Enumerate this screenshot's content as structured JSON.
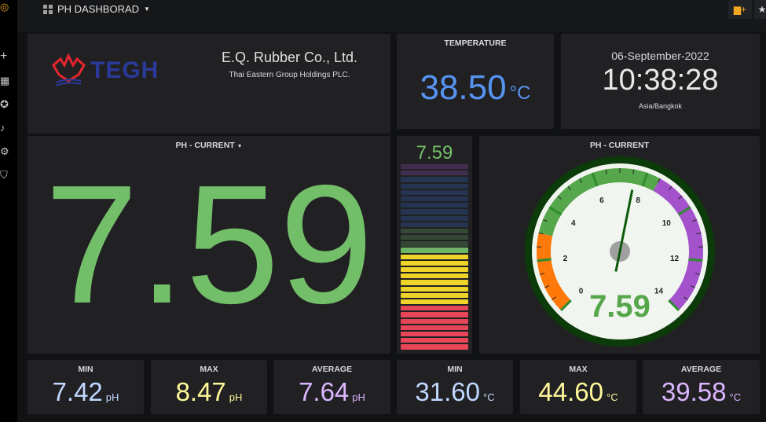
{
  "topbar": {
    "dashboard_title": "PH DASHBORAD",
    "add_panel_icon": "bar-chart-plus-icon",
    "star_icon": "star-icon"
  },
  "sidebar": {
    "icons": [
      "grafana-logo-icon",
      "plus-icon",
      "dashboards-icon",
      "explore-icon",
      "bell-icon",
      "gear-icon",
      "shield-icon"
    ]
  },
  "logo": {
    "text": "TEGH"
  },
  "company": {
    "name": "E.Q. Rubber Co., Ltd.",
    "subtitle": "Thai Eastern Group Holdings PLC."
  },
  "temperature": {
    "title": "TEMPERATURE",
    "value": "38.50",
    "unit": "°C"
  },
  "clock": {
    "date": "06-September-2022",
    "time": "10:38:28",
    "timezone": "Asia/Bangkok"
  },
  "ph_current": {
    "title": "PH - CURRENT",
    "value": "7.59"
  },
  "bar_gauge": {
    "value": "7.59",
    "numeric": 7.59,
    "colors": {
      "red": "#f2495c",
      "yellow": "#fade2a",
      "green": "#73bf69",
      "blue": "#3274d9",
      "purple": "#a352cc"
    }
  },
  "gauge": {
    "title": "PH - CURRENT",
    "value": "7.59",
    "numeric": 7.59,
    "min": 0,
    "max": 14,
    "tick_labels": [
      "0",
      "2",
      "4",
      "6",
      "8",
      "10",
      "12",
      "14"
    ],
    "bands": [
      {
        "from": 0,
        "to": 3,
        "color": "#ff780a"
      },
      {
        "from": 3,
        "to": 8.5,
        "color": "#56a64b"
      },
      {
        "from": 8.5,
        "to": 14,
        "color": "#a352cc"
      }
    ]
  },
  "stats": [
    {
      "label": "MIN",
      "value": "7.42",
      "unit": "pH",
      "color": "#c0d8ff"
    },
    {
      "label": "MAX",
      "value": "8.47",
      "unit": "pH",
      "color": "#fff899"
    },
    {
      "label": "AVERAGE",
      "value": "7.64",
      "unit": "pH",
      "color": "#dcb6ff"
    },
    {
      "label": "MIN",
      "value": "31.60",
      "unit": "°C",
      "color": "#c0d8ff"
    },
    {
      "label": "MAX",
      "value": "44.60",
      "unit": "°C",
      "color": "#fff899"
    },
    {
      "label": "AVERAGE",
      "value": "39.58",
      "unit": "°C",
      "color": "#dcb6ff"
    }
  ]
}
